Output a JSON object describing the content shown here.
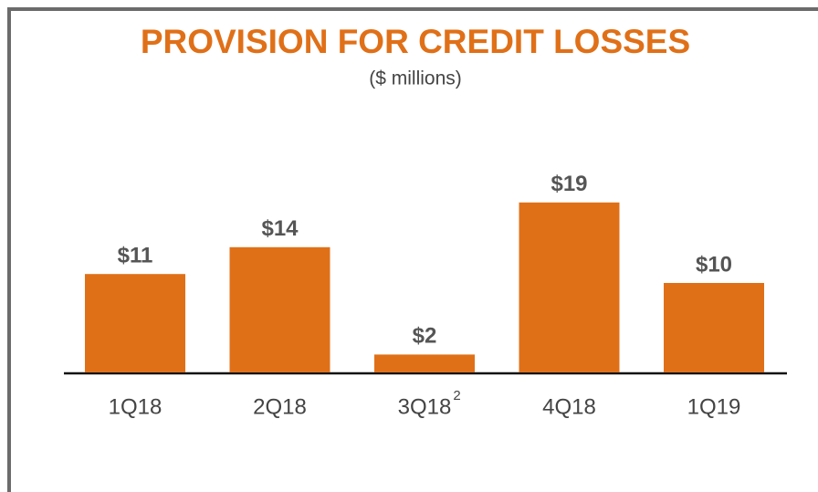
{
  "chart_data": {
    "type": "bar",
    "title": "PROVISION FOR CREDIT LOSSES",
    "subtitle": "($ millions)",
    "categories": [
      "1Q18",
      "2Q18",
      "3Q18",
      "4Q18",
      "1Q19"
    ],
    "category_footnotes": [
      null,
      null,
      "2",
      null,
      null
    ],
    "values": [
      11,
      14,
      2,
      19,
      10
    ],
    "value_labels": [
      "$11",
      "$14",
      "$2",
      "$19",
      "$10"
    ],
    "color": "#e07018"
  }
}
